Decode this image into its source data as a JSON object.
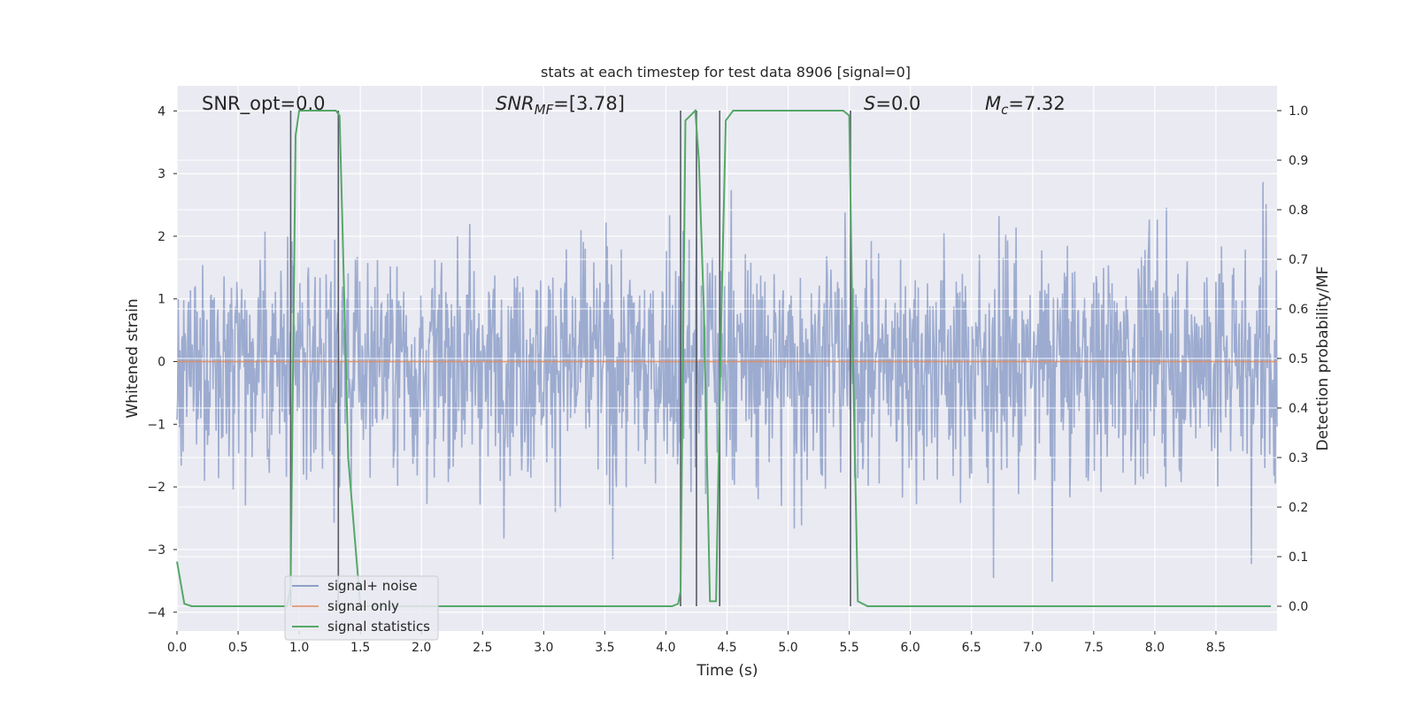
{
  "chart_data": {
    "type": "line",
    "title": "stats at each timestep for test data 8906 [signal=0]",
    "xlabel": "Time (s)",
    "ylabel": "Whitened strain",
    "y2label": "Detection probability/MF",
    "xlim": [
      0.0,
      9.0
    ],
    "ylim": [
      -4.3,
      4.4
    ],
    "y2lim": [
      -0.05,
      1.05
    ],
    "grid": true,
    "legend_position": "lower-left",
    "x_ticks": [
      0.0,
      0.5,
      1.0,
      1.5,
      2.0,
      2.5,
      3.0,
      3.5,
      4.0,
      4.5,
      5.0,
      5.5,
      6.0,
      6.5,
      7.0,
      7.5,
      8.0,
      8.5
    ],
    "x_tick_labels": [
      "0.0",
      "0.5",
      "1.0",
      "1.5",
      "2.0",
      "2.5",
      "3.0",
      "3.5",
      "4.0",
      "4.5",
      "5.0",
      "5.5",
      "6.0",
      "6.5",
      "7.0",
      "7.5",
      "8.0",
      "8.5"
    ],
    "y_ticks": [
      4,
      3,
      2,
      1,
      0,
      -1,
      -2,
      -3,
      -4
    ],
    "y_tick_labels": [
      "4",
      "3",
      "2",
      "1",
      "0",
      "−1",
      "−2",
      "−3",
      "−4"
    ],
    "y2_ticks": [
      1.0,
      0.9,
      0.8,
      0.7,
      0.6,
      0.5,
      0.4,
      0.3,
      0.2,
      0.1,
      0.0
    ],
    "y2_tick_labels": [
      "1.0",
      "0.9",
      "0.8",
      "0.7",
      "0.6",
      "0.5",
      "0.4",
      "0.3",
      "0.2",
      "0.1",
      "0.0"
    ],
    "annotations": {
      "snr_opt": "SNR_opt=0.0",
      "snr_mf_main": "SNR",
      "snr_mf_sub": "MF",
      "snr_mf_value": "=[3.78]",
      "s_symbol": "S",
      "s_value": "=0.0",
      "mc_symbol": "M",
      "mc_sub": "c",
      "mc_value": "=7.32"
    },
    "series": [
      {
        "name": "signal+ noise",
        "color": "#8ea0c9",
        "axis": "left",
        "description": "whitened noisy strain, roughly Gaussian noise spanning about -4 to 4"
      },
      {
        "name": "signal only",
        "color": "#dd8452",
        "axis": "left",
        "x": [
          0.0,
          9.0
        ],
        "y": [
          0.0,
          0.0
        ]
      },
      {
        "name": "signal statistics",
        "color": "#55a868",
        "axis": "right",
        "x": [
          0.0,
          0.06,
          0.12,
          0.5,
          0.9,
          0.93,
          0.97,
          1.0,
          1.05,
          1.3,
          1.33,
          1.35,
          1.4,
          1.5,
          2.0,
          3.0,
          4.0,
          4.05,
          4.1,
          4.12,
          4.16,
          4.2,
          4.24,
          4.27,
          4.31,
          4.36,
          4.41,
          4.45,
          4.49,
          4.55,
          5.0,
          5.45,
          5.5,
          5.53,
          5.57,
          5.65,
          6.0,
          7.0,
          8.0,
          8.95
        ],
        "y": [
          0.09,
          0.005,
          0.0,
          0.0,
          0.0,
          0.04,
          0.95,
          1.0,
          1.0,
          1.0,
          0.99,
          0.8,
          0.3,
          0.0,
          0.0,
          0.0,
          0.0,
          0.0,
          0.005,
          0.03,
          0.98,
          0.99,
          1.0,
          0.9,
          0.6,
          0.01,
          0.01,
          0.55,
          0.98,
          1.0,
          1.0,
          1.0,
          0.99,
          0.5,
          0.01,
          0.0,
          0.0,
          0.0,
          0.0,
          0.0
        ]
      }
    ],
    "vertical_lines": [
      0.93,
      1.32,
      4.12,
      4.25,
      4.44,
      5.51
    ]
  }
}
